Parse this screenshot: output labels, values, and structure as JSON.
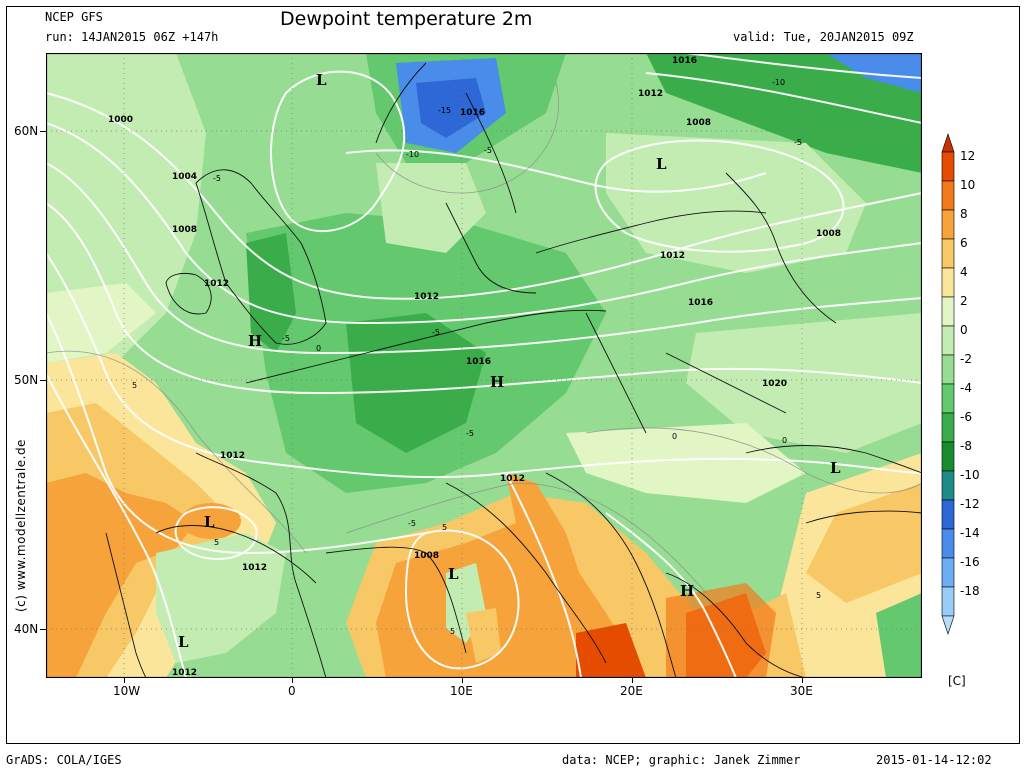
{
  "header": {
    "model": "NCEP GFS",
    "run": "run: 14JAN2015 06Z +147h",
    "title": "Dewpoint temperature 2m",
    "valid": "valid: Tue, 20JAN2015 09Z"
  },
  "axes": {
    "lon_ticks": [
      "10W",
      "0",
      "10E",
      "20E",
      "30E"
    ],
    "lat_ticks": [
      "60N",
      "50N",
      "40N"
    ]
  },
  "colorbar": {
    "values": [
      "12",
      "10",
      "8",
      "6",
      "4",
      "2",
      "0",
      "-2",
      "-4",
      "-6",
      "-8",
      "-10",
      "-12",
      "-14",
      "-16",
      "-18"
    ],
    "colors": [
      "#e64c00",
      "#f27a1a",
      "#f5a33a",
      "#f8c766",
      "#fbe59a",
      "#e2f5c4",
      "#c3ecb2",
      "#96dd93",
      "#63c86e",
      "#3aad4a",
      "#1a8c30",
      "#1e8c86",
      "#2e68d6",
      "#4a8cea",
      "#6eaef2",
      "#98cdf8"
    ],
    "unit": "[C]"
  },
  "credit": "(c) www.modellzentrale.de",
  "map": {
    "pressure_labels": [
      "1016",
      "1012",
      "1008",
      "1000",
      "1004",
      "1008",
      "1012",
      "1016",
      "1012",
      "1008",
      "1012",
      "1016",
      "1020",
      "1012",
      "1012",
      "1016",
      "1012",
      "1012",
      "1008",
      "1016"
    ],
    "dewpoint_labels": [
      "-5",
      "-5",
      "-15",
      "-10",
      "-5",
      "-10",
      "-5",
      "-5",
      "-5",
      "-5",
      "0",
      "5",
      "5",
      "5",
      "5",
      "5",
      "0",
      "0",
      "-5"
    ],
    "systems": [
      "L",
      "L",
      "H",
      "H",
      "L",
      "L",
      "H",
      "L",
      "L"
    ]
  },
  "footer": {
    "left": "GrADS: COLA/IGES",
    "center": "data: NCEP; graphic: Janek Zimmer",
    "right": "2015-01-14-12:02"
  }
}
